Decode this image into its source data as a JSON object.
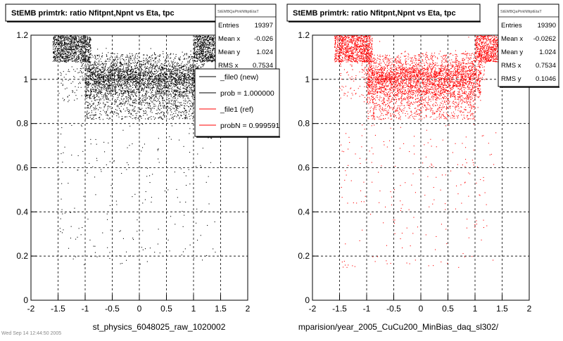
{
  "chart_data": [
    {
      "type": "scatter",
      "title": "StEMB primtrk: ratio Nfitpnt,Npnt vs Eta, tpc",
      "xlabel": "st_physics_6048025_raw_1020002",
      "ylabel": "",
      "xlim": [
        -2,
        2
      ],
      "ylim": [
        0,
        1.2
      ],
      "x_ticks": [
        "-2",
        "-1.5",
        "-1",
        "-0.5",
        "0",
        "0.5",
        "1",
        "1.5",
        "2"
      ],
      "y_ticks": [
        "0",
        "0.2",
        "0.4",
        "0.6",
        "0.8",
        "1",
        "1.2"
      ],
      "grid": true,
      "marker_color": "#000000",
      "stats": {
        "name": "StEMBQaPtrkNfitptEtaT",
        "rows": [
          {
            "label": "Entries",
            "value": "19397"
          },
          {
            "label": "Mean x",
            "value": "-0.026"
          },
          {
            "label": "Mean y",
            "value": "1.024"
          },
          {
            "label": "RMS x",
            "value": "0.7534"
          }
        ]
      },
      "legend": {
        "placement": "top-right",
        "entries": [
          {
            "label": "_file0 (new)",
            "color": "#000000"
          },
          {
            "label": "prob = 1.000000",
            "color": "#000000"
          },
          {
            "label": "_file1 (ref)",
            "color": "#ff0000"
          },
          {
            "label": "probN = 0.999591",
            "color": "#ff0000"
          }
        ]
      },
      "series": [
        {
          "values_description": "band y~0.92-1.08 over eta -1..1, dense",
          "x": [
            -1.0,
            -0.5,
            0,
            0.5,
            1.0
          ],
          "y": [
            1.0,
            1.0,
            1.0,
            1.0,
            1.0
          ]
        }
      ]
    },
    {
      "type": "scatter",
      "title": "StEMB primtrk: ratio Nfitpnt,Npnt vs Eta, tpc",
      "xlabel": "mparision/year_2005_CuCu200_MinBias_daq_sl302/",
      "ylabel": "",
      "xlim": [
        -2,
        2
      ],
      "ylim": [
        0,
        1.2
      ],
      "x_ticks": [
        "-2",
        "-1.5",
        "-1",
        "-0.5",
        "0",
        "0.5",
        "1",
        "1.5",
        "2"
      ],
      "y_ticks": [
        "0",
        "0.2",
        "0.4",
        "0.6",
        "0.8",
        "1",
        "1.2"
      ],
      "grid": true,
      "marker_color": "#ff0000",
      "stats": {
        "name": "StEMBQaPtrkNfitptEtaT",
        "rows": [
          {
            "label": "Entries",
            "value": "19390"
          },
          {
            "label": "Mean x",
            "value": "-0.0262"
          },
          {
            "label": "Mean y",
            "value": "1.024"
          },
          {
            "label": "RMS x",
            "value": "0.7534"
          },
          {
            "label": "RMS y",
            "value": "0.1046"
          }
        ]
      },
      "series": [
        {
          "x": [
            -1.0,
            -0.5,
            0,
            0.5,
            1.0
          ],
          "y": [
            1.0,
            1.0,
            1.0,
            1.0,
            1.0
          ]
        }
      ]
    }
  ],
  "footer": {
    "timestamp": "Wed Sep 14 12:44:50 2005"
  }
}
